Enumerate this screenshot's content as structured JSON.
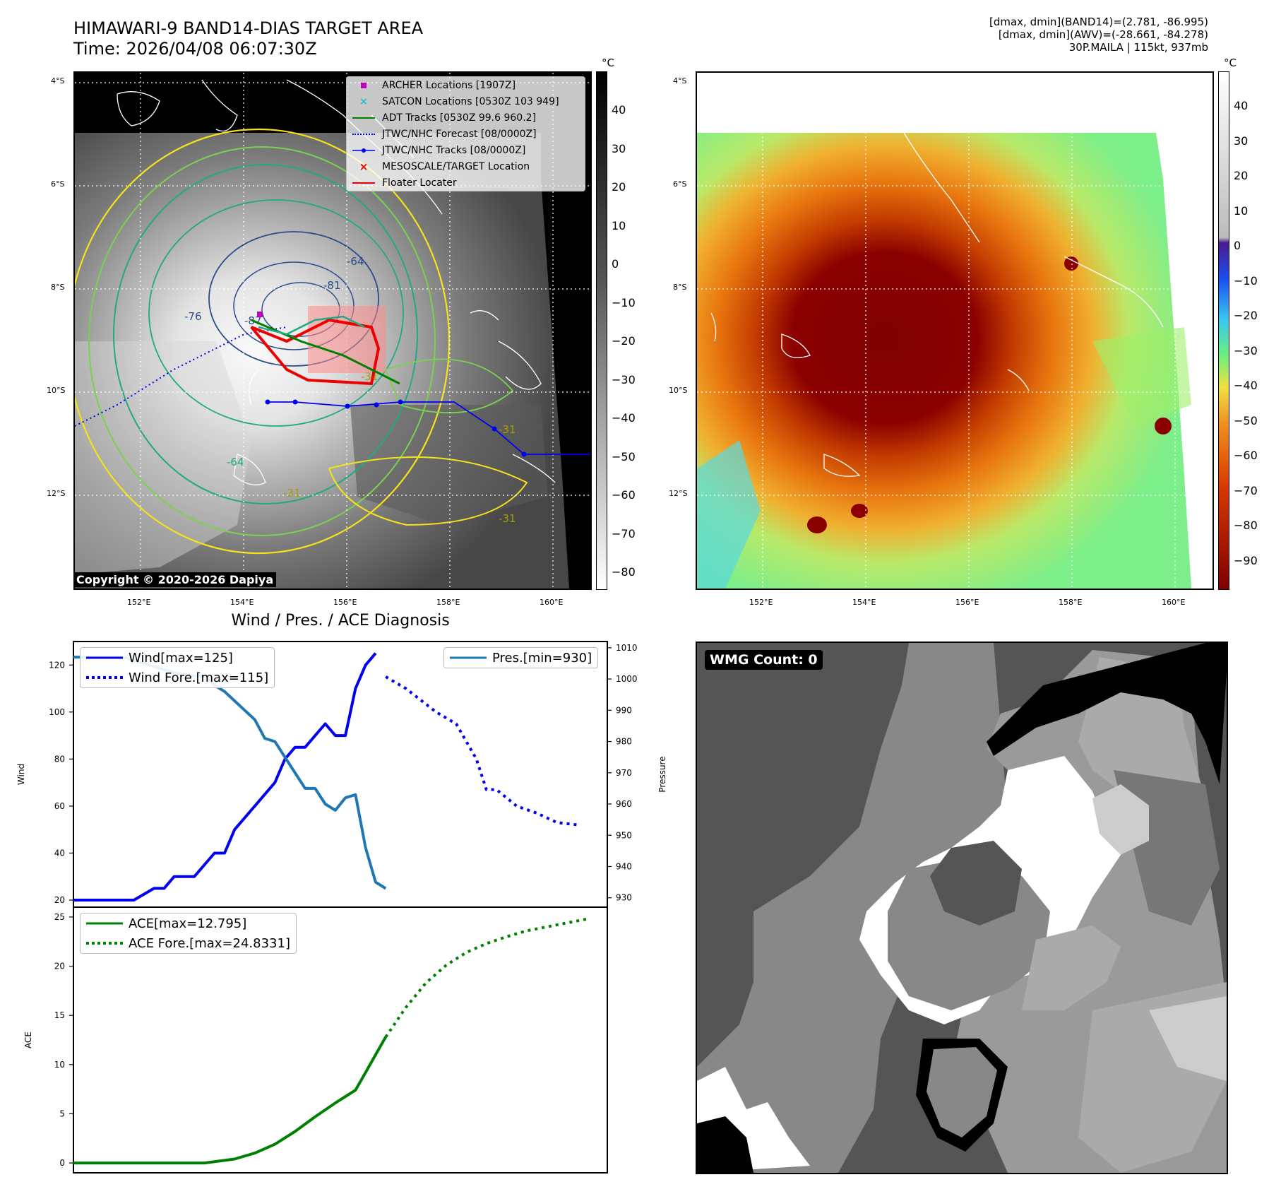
{
  "header": {
    "title_line1": "HIMAWARI-9 BAND14-DIAS TARGET AREA",
    "title_line2": "Time: 2026/04/08 06:07:30Z",
    "info_line1": "[dmax, dmin](BAND14)=(2.781, -86.995)",
    "info_line2": "[dmax, dmin](AWV)=(-28.661, -84.278)",
    "info_line3": "30P.MAILA | 115kt, 937mb"
  },
  "map": {
    "lat_ticks": [
      "4°S",
      "6°S",
      "8°S",
      "10°S",
      "12°S"
    ],
    "lon_ticks": [
      "152°E",
      "154°E",
      "156°E",
      "158°E",
      "160°E"
    ],
    "contour_labels": [
      "-64",
      "-81",
      "-76",
      "-87",
      "-31",
      "-31",
      "-31",
      "-64",
      "-31"
    ],
    "colors": {
      "contour_yellow": "#f5e21b",
      "contour_lightgreen": "#7ad151",
      "contour_teal": "#22a884",
      "contour_navy": "#2a4d8a",
      "track_blue": "#0000ee",
      "adt_green": "#008000",
      "satcon_cyan": "#17becf",
      "archer_magenta": "#bf00bf",
      "floater_red": "#ee0000"
    },
    "legend": [
      {
        "label": "ARCHER Locations [1907Z]",
        "icon": "magenta-square"
      },
      {
        "label": "SATCON Locations [0530Z 103 949]",
        "icon": "cyan-x"
      },
      {
        "label": "ADT Tracks [0530Z 99.6 960.2]",
        "icon": "green-line"
      },
      {
        "label": "JTWC/NHC Forecast [08/0000Z]",
        "icon": "blue-dotted-line"
      },
      {
        "label": "JTWC/NHC Tracks [08/0000Z]",
        "icon": "blue-line-dot"
      },
      {
        "label": "MESOSCALE/TARGET Location",
        "icon": "red-x"
      },
      {
        "label": "Floater Locater",
        "icon": "red-line"
      }
    ],
    "copyright": "Copyright © 2020-2026 Dapiya",
    "cbar_unit": "°C",
    "cbar_ticks": [
      "40",
      "30",
      "20",
      "10",
      "0",
      "−10",
      "−20",
      "−30",
      "−40",
      "−50",
      "−60",
      "−70",
      "−80"
    ]
  },
  "awv": {
    "cbar_unit": "°C",
    "cbar_ticks": [
      "40",
      "30",
      "20",
      "10",
      "0",
      "−10",
      "−20",
      "−30",
      "−40",
      "−50",
      "−60",
      "−70",
      "−80",
      "−90"
    ]
  },
  "wmg": {
    "label": "WMG Count: 0"
  },
  "chart_data": [
    {
      "type": "line",
      "title": "Wind / Pres. / ACE Diagnosis",
      "ylabel": "Wind",
      "y2label": "Pressure",
      "ylim": [
        17,
        130
      ],
      "y2lim": [
        927,
        1012
      ],
      "yticks": [
        "120",
        "100",
        "80",
        "60",
        "40",
        "20"
      ],
      "y2ticks": [
        "1010",
        "1000",
        "990",
        "980",
        "970",
        "960",
        "950",
        "940",
        "930"
      ],
      "legend_left": [
        "Wind[max=125]",
        "Wind Fore.[max=115]"
      ],
      "legend_right": [
        "Pres.[min=930]"
      ],
      "xlim": [
        0,
        53
      ],
      "series": [
        {
          "name": "Wind[max=125]",
          "color": "#0000ee",
          "style": "solid",
          "x": [
            0,
            6,
            8,
            9,
            10,
            11,
            12,
            14,
            15,
            16,
            18,
            19,
            20,
            21,
            22,
            23,
            24,
            25,
            26,
            27,
            28,
            29,
            30
          ],
          "y": [
            20,
            20,
            25,
            25,
            30,
            30,
            30,
            40,
            40,
            50,
            60,
            65,
            70,
            80,
            85,
            85,
            90,
            95,
            90,
            90,
            110,
            120,
            125
          ]
        },
        {
          "name": "Wind Fore.[max=115]",
          "color": "#0000ee",
          "style": "dotted",
          "x": [
            31,
            33,
            36,
            38,
            40,
            41,
            42,
            44,
            46,
            48,
            50
          ],
          "y": [
            115,
            110,
            100,
            95,
            80,
            67,
            67,
            60,
            57,
            53,
            52
          ]
        },
        {
          "name": "Pres.[min=930]",
          "color": "#1f77b4",
          "style": "solid",
          "axis": "y2",
          "x": [
            0,
            5,
            7,
            10,
            12,
            13,
            14,
            15,
            16,
            17,
            18,
            19,
            20,
            21,
            22,
            23,
            24,
            25,
            26,
            27,
            28,
            29,
            30,
            31
          ],
          "y": [
            1007,
            1007,
            1005,
            1002,
            1001,
            1001,
            998,
            996,
            993,
            990,
            987,
            981,
            980,
            975,
            970,
            965,
            965,
            960,
            958,
            962,
            963,
            946,
            935,
            933
          ]
        }
      ]
    },
    {
      "type": "line",
      "ylabel": "ACE",
      "ylim": [
        -1,
        26
      ],
      "yticks": [
        "25",
        "20",
        "15",
        "10",
        "5",
        "0"
      ],
      "legend": [
        "ACE[max=12.795]",
        "ACE Fore.[max=24.8331]"
      ],
      "xlim": [
        0,
        53
      ],
      "series": [
        {
          "name": "ACE[max=12.795]",
          "color": "#008000",
          "style": "solid",
          "x": [
            0,
            5,
            10,
            13,
            16,
            18,
            20,
            22,
            24,
            26,
            28,
            29,
            30,
            31
          ],
          "y": [
            0,
            0,
            0,
            0,
            0.4,
            1.0,
            1.9,
            3.2,
            4.7,
            6.1,
            7.4,
            9.2,
            11.0,
            12.8
          ]
        },
        {
          "name": "ACE Fore.[max=24.8331]",
          "color": "#008000",
          "style": "dotted",
          "x": [
            31,
            33,
            35,
            37,
            39,
            41,
            43,
            45,
            47,
            49,
            51
          ],
          "y": [
            12.8,
            15.8,
            18.3,
            20.1,
            21.4,
            22.3,
            23.0,
            23.6,
            24.0,
            24.4,
            24.8
          ]
        }
      ]
    }
  ]
}
